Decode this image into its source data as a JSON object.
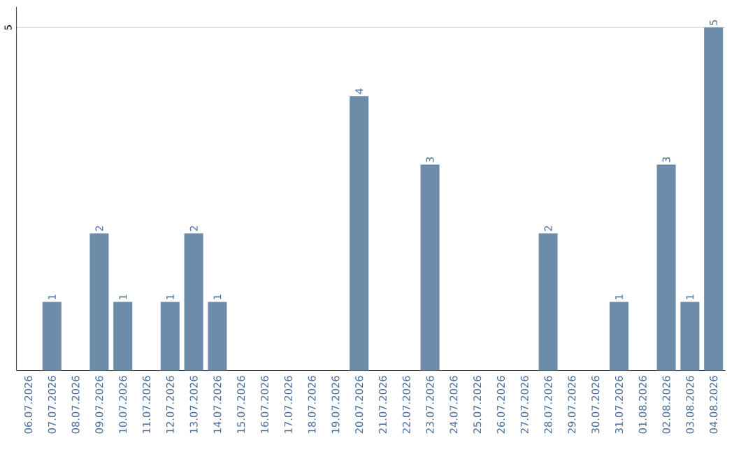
{
  "chart_data": {
    "type": "bar",
    "categories": [
      "06.07.2026",
      "07.07.2026",
      "08.07.2026",
      "09.07.2026",
      "10.07.2026",
      "11.07.2026",
      "12.07.2026",
      "13.07.2026",
      "14.07.2026",
      "15.07.2026",
      "16.07.2026",
      "17.07.2026",
      "18.07.2026",
      "19.07.2026",
      "20.07.2026",
      "21.07.2026",
      "22.07.2026",
      "23.07.2026",
      "24.07.2026",
      "25.07.2026",
      "26.07.2026",
      "27.07.2026",
      "28.07.2026",
      "29.07.2026",
      "30.07.2026",
      "31.07.2026",
      "01.08.2026",
      "02.08.2026",
      "03.08.2026",
      "04.08.2026"
    ],
    "values": [
      null,
      1,
      null,
      2,
      1,
      null,
      1,
      2,
      1,
      null,
      null,
      null,
      null,
      null,
      4,
      null,
      null,
      3,
      null,
      null,
      null,
      null,
      2,
      null,
      null,
      1,
      null,
      3,
      1,
      5
    ],
    "color": "#6d8caa",
    "ylim": [
      0,
      5.3
    ],
    "yticks": [
      5
    ],
    "grid": "y",
    "data_labels": true
  }
}
